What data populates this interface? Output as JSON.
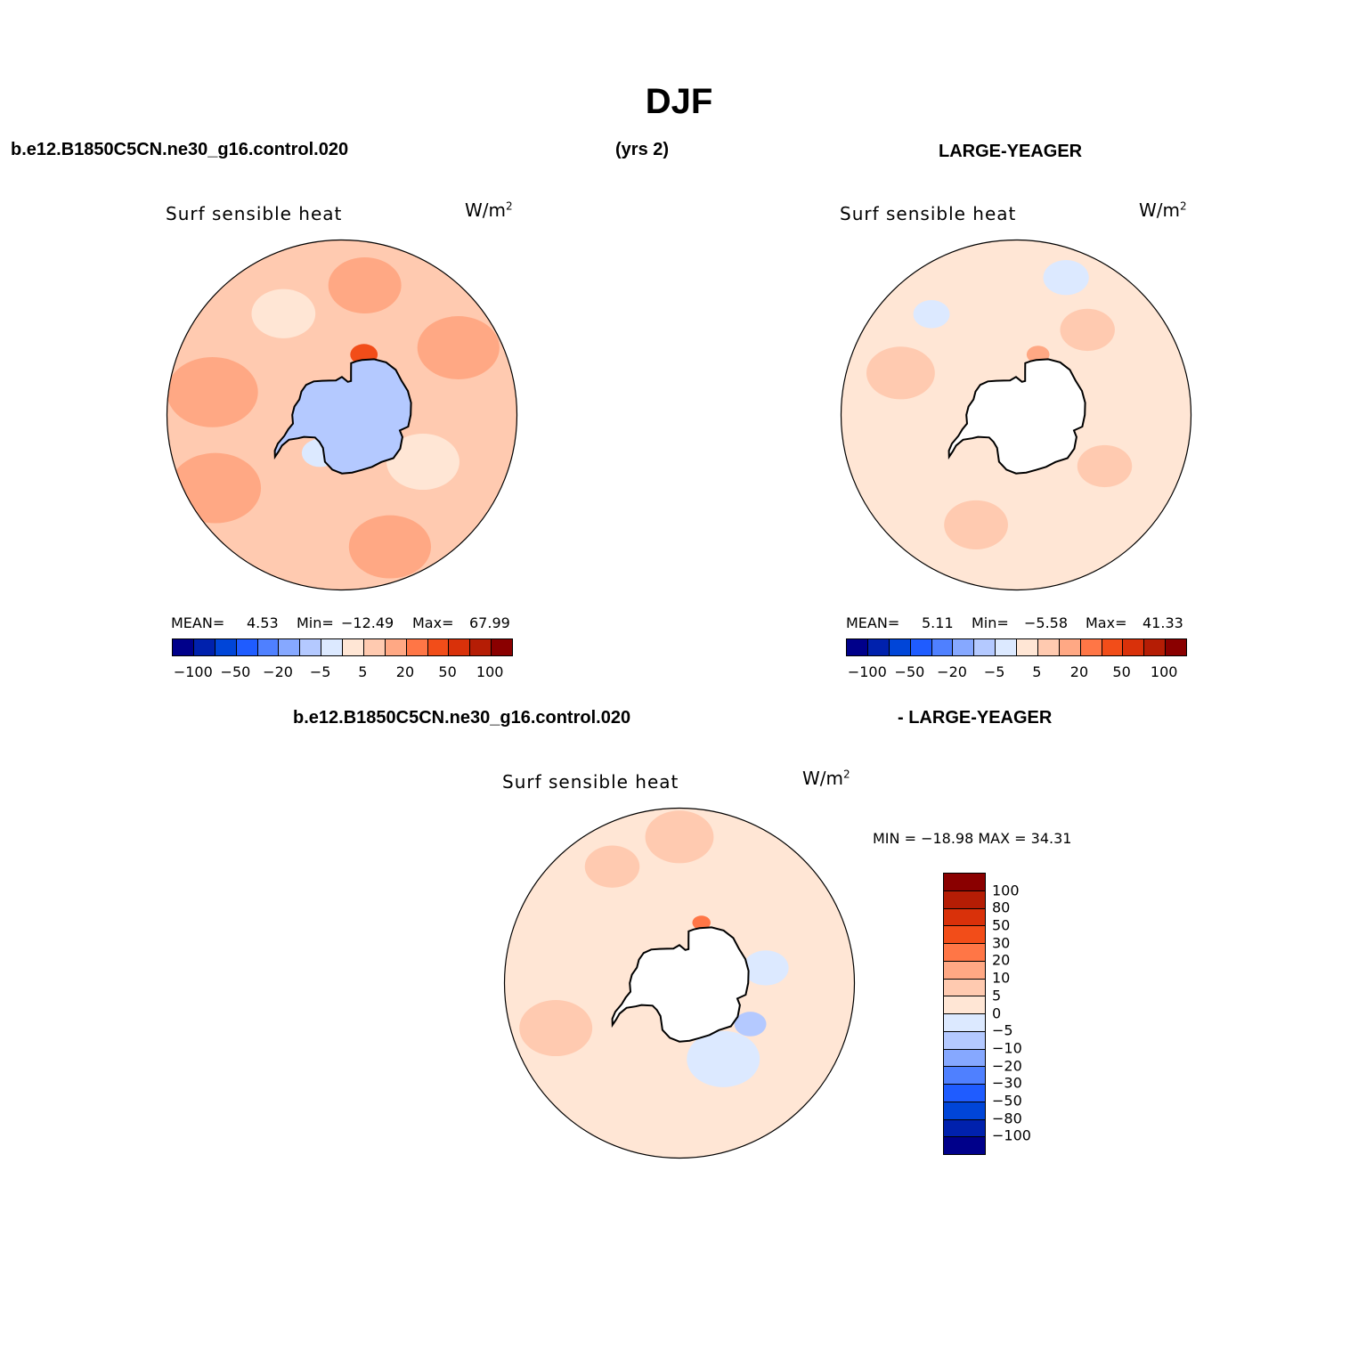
{
  "figure": {
    "title": "DJF",
    "case_name": "b.e12.B1850C5CN.ne30_g16.control.020",
    "years": "(yrs 2)",
    "obs_name": "LARGE-YEAGER",
    "diff_case": "b.e12.B1850C5CN.ne30_g16.control.020",
    "diff_obs": "- LARGE-YEAGER"
  },
  "colors": {
    "scale": [
      "#00008a",
      "#0021ad",
      "#0045d8",
      "#1f5cff",
      "#4f80ff",
      "#86a8ff",
      "#b4c9ff",
      "#dce9ff",
      "#ffe6d5",
      "#ffcab0",
      "#ffa884",
      "#ff7646",
      "#f24d19",
      "#d9310a",
      "#b51d05",
      "#8a0000"
    ],
    "land": "#ffffff",
    "coast": "#000000"
  },
  "panels": [
    {
      "id": "model",
      "title": "Surf  sensible  heat",
      "units_base": "W/m",
      "units_sup": "2",
      "mean_label": "MEAN=",
      "mean": "4.53",
      "min_label": "Min=",
      "min": "−12.49",
      "max_label": "Max=",
      "max": "67.99",
      "colorbar_ticks": [
        "−100",
        "−50",
        "−20",
        "−5",
        "5",
        "20",
        "50",
        "100"
      ],
      "fields": {
        "ocean": "#ffcab0",
        "land": "#b4c9ff",
        "patches": [
          {
            "lat": -42,
            "lon": 20,
            "r": 0.18,
            "color": "#ffa884"
          },
          {
            "lat": -40,
            "lon": -60,
            "r": 0.2,
            "color": "#ffa884"
          },
          {
            "lat": -45,
            "lon": -100,
            "r": 0.2,
            "color": "#ffa884"
          },
          {
            "lat": -44,
            "lon": 120,
            "r": 0.18,
            "color": "#ffa884"
          },
          {
            "lat": -45,
            "lon": 170,
            "r": 0.16,
            "color": "#ffa884"
          },
          {
            "lat": -68,
            "lon": 160,
            "r": 0.06,
            "color": "#f24d19"
          },
          {
            "lat": -58,
            "lon": 60,
            "r": 0.16,
            "color": "#ffe6d5"
          },
          {
            "lat": -50,
            "lon": -150,
            "r": 0.14,
            "color": "#ffe6d5"
          },
          {
            "lat": -80,
            "lon": 100,
            "r": 0.1,
            "color": "#dce9ff"
          },
          {
            "lat": -75,
            "lon": -30,
            "r": 0.08,
            "color": "#dce9ff"
          }
        ]
      }
    },
    {
      "id": "obs",
      "title": "Surf  sensible  heat",
      "units_base": "W/m",
      "units_sup": "2",
      "mean_label": "MEAN=",
      "mean": "5.11",
      "min_label": "Min=",
      "min": "−5.58",
      "max_label": "Max=",
      "max": "41.33",
      "colorbar_ticks": [
        "−100",
        "−50",
        "−20",
        "−5",
        "5",
        "20",
        "50",
        "100"
      ],
      "fields": {
        "ocean": "#ffe6d5",
        "land": "#ffffff",
        "patches": [
          {
            "lat": -55,
            "lon": 60,
            "r": 0.12,
            "color": "#ffcab0"
          },
          {
            "lat": -50,
            "lon": -20,
            "r": 0.14,
            "color": "#ffcab0"
          },
          {
            "lat": -48,
            "lon": -110,
            "r": 0.15,
            "color": "#ffcab0"
          },
          {
            "lat": -52,
            "lon": 140,
            "r": 0.12,
            "color": "#ffcab0"
          },
          {
            "lat": -68,
            "lon": 160,
            "r": 0.05,
            "color": "#ffa884"
          },
          {
            "lat": -40,
            "lon": 160,
            "r": 0.1,
            "color": "#dce9ff"
          },
          {
            "lat": -45,
            "lon": -140,
            "r": 0.08,
            "color": "#dce9ff"
          }
        ]
      }
    }
  ],
  "diff_panel": {
    "title": "Surf  sensible  heat",
    "units_base": "W/m",
    "units_sup": "2",
    "minmax_label": "MIN  =  −18.98  MAX  =   34.31",
    "colorbar_labels": [
      "100",
      "80",
      "50",
      "30",
      "20",
      "10",
      "5",
      "0",
      "−5",
      "−10",
      "−20",
      "−30",
      "−50",
      "−80",
      "−100"
    ],
    "fields": {
      "ocean": "#ffe6d5",
      "land": "#ffffff",
      "patches": [
        {
          "lat": -45,
          "lon": -70,
          "r": 0.16,
          "color": "#ffcab0"
        },
        {
          "lat": -40,
          "lon": 180,
          "r": 0.15,
          "color": "#ffcab0"
        },
        {
          "lat": -44,
          "lon": -150,
          "r": 0.12,
          "color": "#ffcab0"
        },
        {
          "lat": -60,
          "lon": 30,
          "r": 0.16,
          "color": "#dce9ff"
        },
        {
          "lat": -60,
          "lon": 100,
          "r": 0.1,
          "color": "#dce9ff"
        },
        {
          "lat": -62,
          "lon": 60,
          "r": 0.07,
          "color": "#b4c9ff"
        },
        {
          "lat": -68,
          "lon": 160,
          "r": 0.04,
          "color": "#ff7646"
        }
      ]
    }
  }
}
